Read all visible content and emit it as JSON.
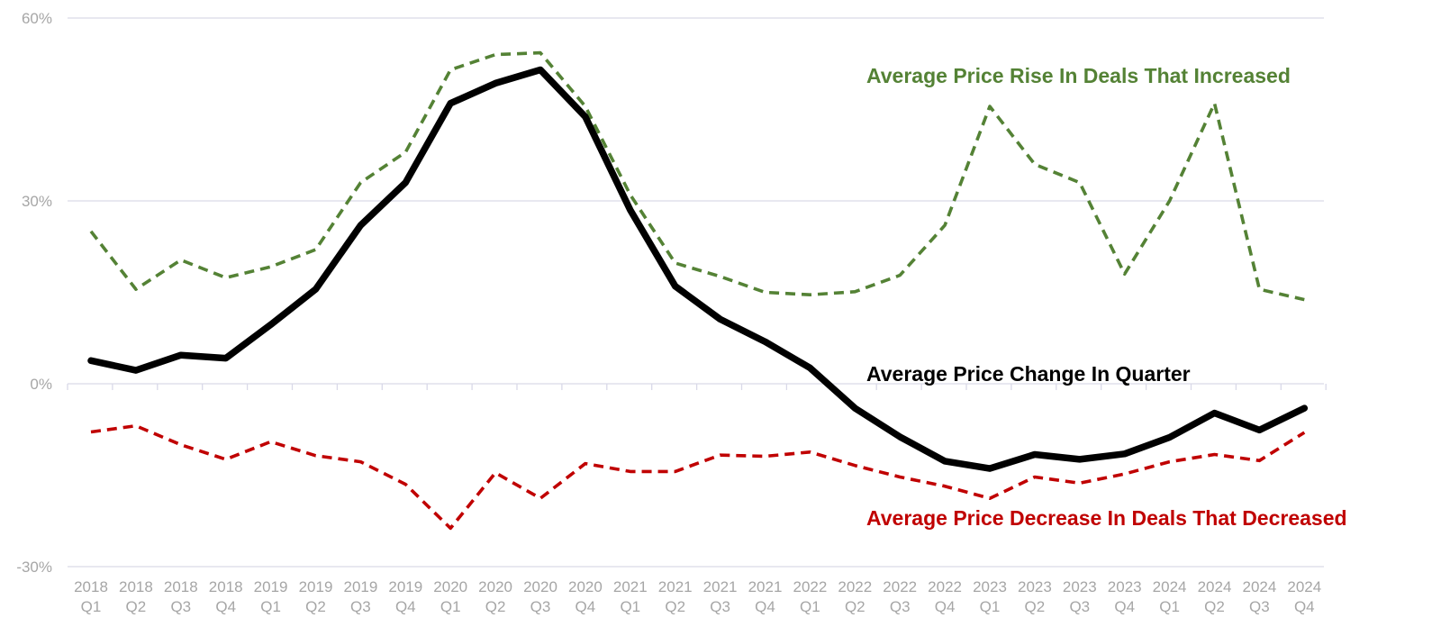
{
  "chart_data": {
    "type": "line",
    "title": "",
    "xlabel": "",
    "ylabel": "",
    "ylim": [
      -30,
      60
    ],
    "yticks": [
      {
        "value": 60,
        "label": "60%"
      },
      {
        "value": 30,
        "label": "30%"
      },
      {
        "value": 0,
        "label": "0%"
      },
      {
        "value": -30,
        "label": "-30%"
      }
    ],
    "grid": true,
    "categories": [
      [
        "2018",
        "Q1"
      ],
      [
        "2018",
        "Q2"
      ],
      [
        "2018",
        "Q3"
      ],
      [
        "2018",
        "Q4"
      ],
      [
        "2019",
        "Q1"
      ],
      [
        "2019",
        "Q2"
      ],
      [
        "2019",
        "Q3"
      ],
      [
        "2019",
        "Q4"
      ],
      [
        "2020",
        "Q1"
      ],
      [
        "2020",
        "Q2"
      ],
      [
        "2020",
        "Q3"
      ],
      [
        "2020",
        "Q4"
      ],
      [
        "2021",
        "Q1"
      ],
      [
        "2021",
        "Q2"
      ],
      [
        "2021",
        "Q3"
      ],
      [
        "2021",
        "Q4"
      ],
      [
        "2022",
        "Q1"
      ],
      [
        "2022",
        "Q2"
      ],
      [
        "2022",
        "Q3"
      ],
      [
        "2022",
        "Q4"
      ],
      [
        "2023",
        "Q1"
      ],
      [
        "2023",
        "Q2"
      ],
      [
        "2023",
        "Q3"
      ],
      [
        "2023",
        "Q4"
      ],
      [
        "2024",
        "Q1"
      ],
      [
        "2024",
        "Q2"
      ],
      [
        "2024",
        "Q3"
      ],
      [
        "2024",
        "Q4"
      ]
    ],
    "series": [
      {
        "name": "Average Price Rise In Deals That Increased",
        "color": "#548235",
        "style": "dashed",
        "values": [
          25,
          15.5,
          20.3,
          17.4,
          19.2,
          22,
          33,
          38,
          51.5,
          54,
          54.3,
          45.5,
          31,
          19.8,
          17.6,
          15,
          14.6,
          15.1,
          17.8,
          26,
          45.5,
          36,
          33,
          18,
          30,
          46,
          15.5,
          13.8
        ]
      },
      {
        "name": "Average Price Change In Quarter",
        "color": "#000000",
        "style": "solid",
        "values": [
          3.8,
          2.2,
          4.7,
          4.2,
          9.7,
          15.5,
          26,
          33,
          46,
          49.3,
          51.5,
          43.8,
          28.5,
          16,
          10.6,
          6.9,
          2.6,
          -4,
          -8.7,
          -12.7,
          -13.9,
          -11.6,
          -12.4,
          -11.5,
          -8.8,
          -4.8,
          -7.6,
          -4
        ]
      },
      {
        "name": "Average Price Decrease In Deals That Decreased",
        "color": "#c00000",
        "style": "dashed",
        "values": [
          -7.9,
          -6.9,
          -10,
          -12.4,
          -9.5,
          -11.8,
          -12.8,
          -16.5,
          -23.7,
          -14.6,
          -18.8,
          -13.1,
          -14.4,
          -14.4,
          -11.7,
          -11.9,
          -11.2,
          -13.4,
          -15.3,
          -16.8,
          -18.8,
          -15.3,
          -16.3,
          -14.8,
          -12.8,
          -11.6,
          -12.6,
          -8
        ]
      }
    ],
    "annotations": [
      {
        "text": "Average Price Rise In Deals That Increased",
        "color": "#548235"
      },
      {
        "text": "Average Price Change In Quarter",
        "color": "#000000"
      },
      {
        "text": "Average Price Decrease In Deals That Decreased",
        "color": "#c00000"
      }
    ],
    "colors": {
      "grid": "#d9d9e8",
      "axis": "#d9d9e8",
      "tick_text": "#a6a6a6"
    }
  }
}
